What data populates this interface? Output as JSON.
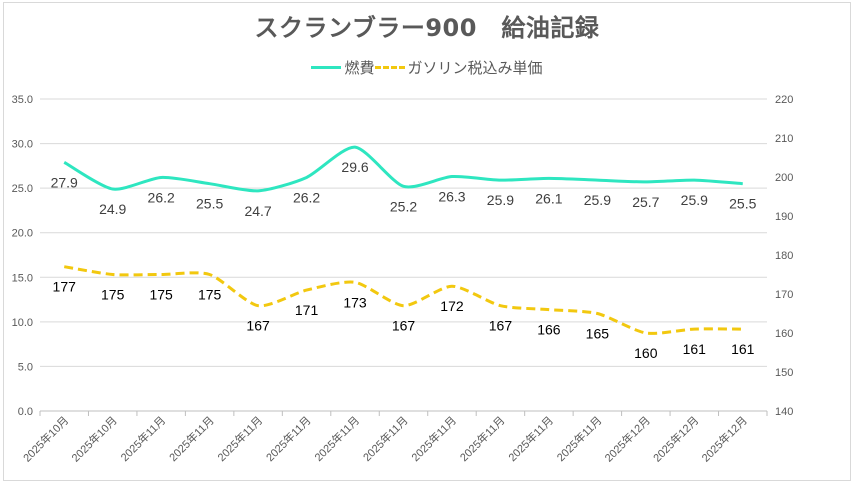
{
  "chart_data": {
    "type": "line",
    "title": "スクランブラー900　給油記録",
    "categories": [
      "2025年10月",
      "2025年10月",
      "2025年11月",
      "2025年11月",
      "2025年11月",
      "2025年11月",
      "2025年11月",
      "2025年11月",
      "2025年11月",
      "2025年11月",
      "2025年11月",
      "2025年11月",
      "2025年12月",
      "2025年12月",
      "2025年12月"
    ],
    "series": [
      {
        "name": "燃費",
        "axis": "left",
        "color": "#2EE6C0",
        "style": "solid",
        "label_color": "#404040",
        "values": [
          27.9,
          24.9,
          26.2,
          25.5,
          24.7,
          26.2,
          29.6,
          25.2,
          26.3,
          25.9,
          26.1,
          25.9,
          25.7,
          25.9,
          25.5
        ]
      },
      {
        "name": "ガソリン税込み単価",
        "axis": "right",
        "color": "#F2C80F",
        "style": "dashed",
        "label_color": "#000000",
        "values": [
          177,
          175,
          175,
          175,
          167,
          171,
          173,
          167,
          172,
          167,
          166,
          165,
          160,
          161,
          161
        ]
      }
    ],
    "y_left": {
      "min": 0,
      "max": 35,
      "step": 5,
      "ticks": [
        "0.0",
        "5.0",
        "10.0",
        "15.0",
        "20.0",
        "25.0",
        "30.0",
        "35.0"
      ]
    },
    "y_right": {
      "min": 140,
      "max": 220,
      "step": 10,
      "ticks": [
        "140",
        "150",
        "160",
        "170",
        "180",
        "190",
        "200",
        "210",
        "220"
      ]
    },
    "grid": true,
    "legend_position": "top"
  }
}
